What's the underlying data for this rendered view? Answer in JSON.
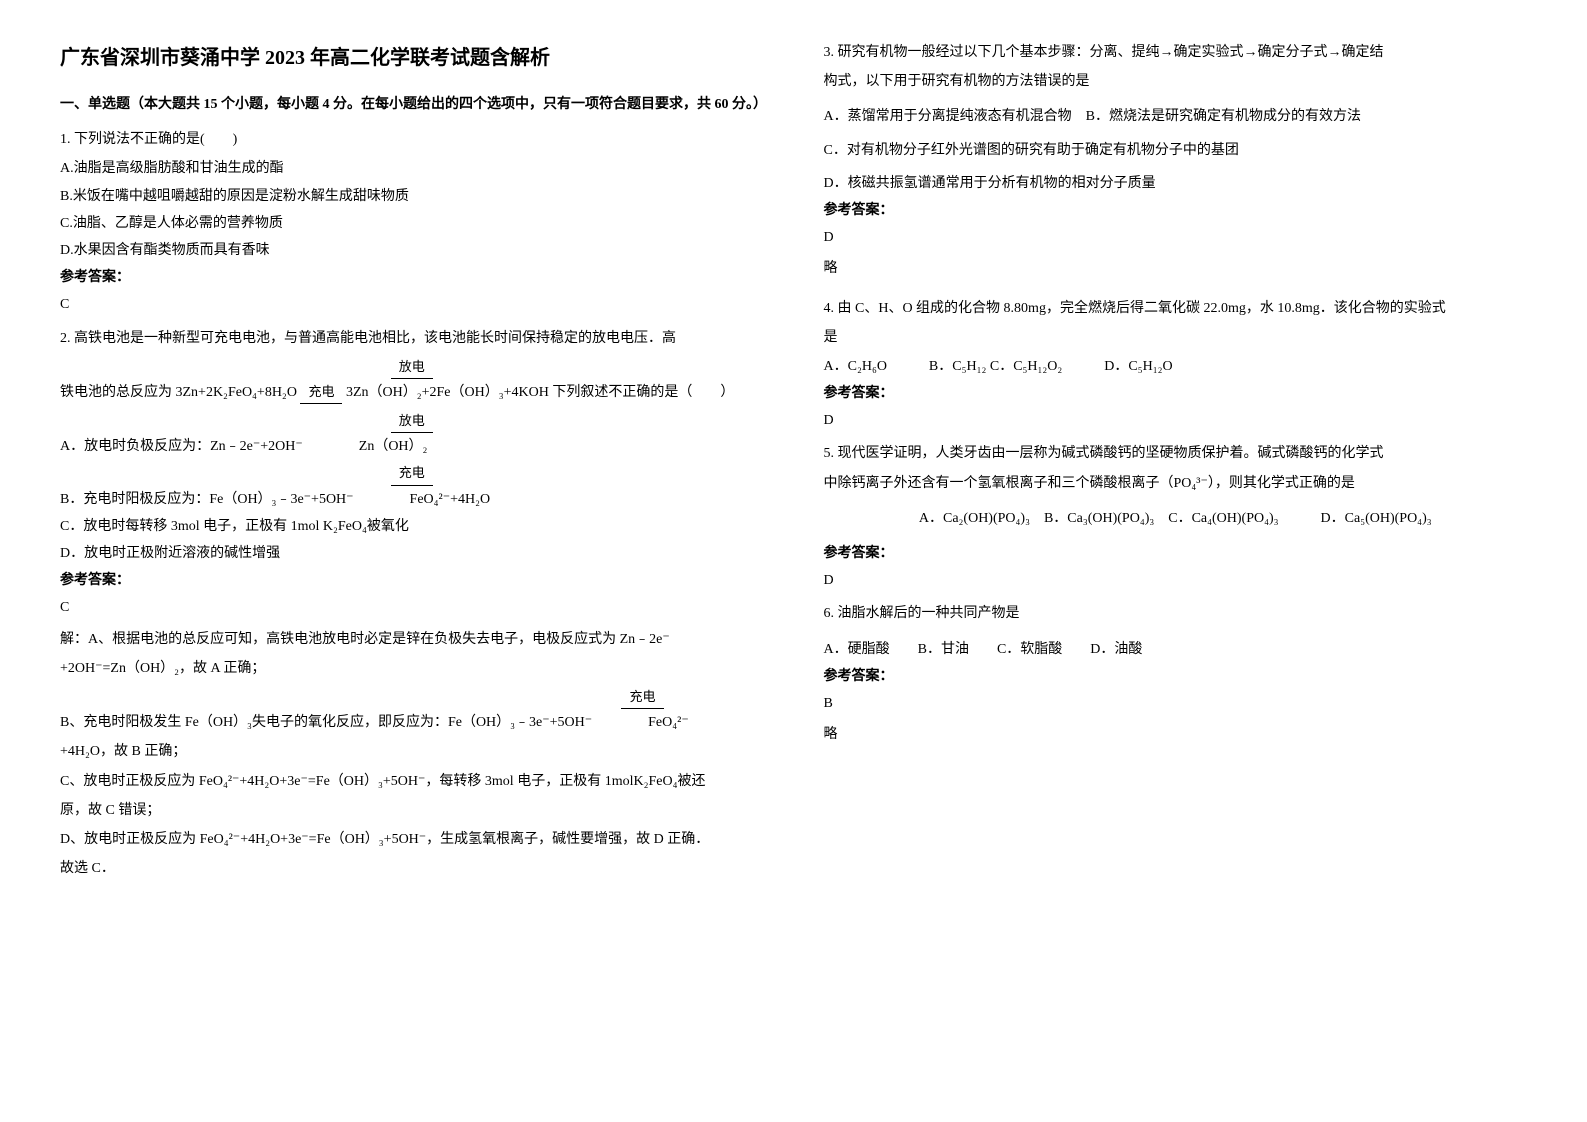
{
  "title": "广东省深圳市葵涌中学 2023 年高二化学联考试题含解析",
  "section1_heading": "一、单选题（本大题共 15 个小题，每小题 4 分。在每小题给出的四个选项中，只有一项符合题目要求，共 60 分。）",
  "q1": {
    "stem": "1. 下列说法不正确的是(　　)",
    "optA": "A.油脂是高级脂肪酸和甘油生成的酯",
    "optB": "B.米饭在嘴中越咀嚼越甜的原因是淀粉水解生成甜味物质",
    "optC": "C.油脂、乙醇是人体必需的营养物质",
    "optD": "D.水果因含有酯类物质而具有香味",
    "ans_label": "参考答案：",
    "ans": "C"
  },
  "q2": {
    "stem_a": "2. 高铁电池是一种新型可充电电池，与普通高能电池相比，该电池能长时间保持稳定的放电电压．高",
    "anno1": "放电",
    "stem_b1": "铁电池的总反应为 3Zn+2K₂FeO₄+8H₂O ",
    "anno1b": "充电",
    "stem_b2": " 3Zn（OH）₂+2Fe（OH）₃+4KOH 下列叙述不正确的是（　　）",
    "anno2": "放电",
    "optA": "A．放电时负极反应为：Zn﹣2e⁻+2OH⁻　　　　Zn（OH）₂",
    "anno3": "充电",
    "optB": "B．充电时阳极反应为：Fe（OH）₃﹣3e⁻+5OH⁻　　　　FeO₄²⁻+4H₂O",
    "optC": "C．放电时每转移 3mol 电子，正极有 1mol K₂FeO₄被氧化",
    "optD": "D．放电时正极附近溶液的碱性增强",
    "ans_label": "参考答案：",
    "ans": "C",
    "exp1": "解：A、根据电池的总反应可知，高铁电池放电时必定是锌在负极失去电子，电极反应式为 Zn﹣2e⁻",
    "exp2": "+2OH⁻=Zn（OH）₂，故 A 正确；",
    "anno4": "充电",
    "exp3a": "B、充电时阳极发生 Fe（OH）₃失电子的氧化反应，即反应为：Fe（OH）₃﹣3e⁻+5OH⁻　　　　FeO₄²⁻",
    "exp3b": "+4H₂O，故 B 正确；",
    "exp4": "C、放电时正极反应为 FeO₄²⁻+4H₂O+3e⁻=Fe（OH）₃+5OH⁻，每转移 3mol 电子，正极有 1molK₂FeO₄被还",
    "exp5": "原，故 C 错误；",
    "exp6": "D、放电时正极反应为 FeO₄²⁻+4H₂O+3e⁻=Fe（OH）₃+5OH⁻，生成氢氧根离子，碱性要增强，故 D 正确．",
    "exp7": "故选 C．"
  },
  "q3": {
    "stem1": "3. 研究有机物一般经过以下几个基本步骤：分离、提纯→确定实验式→确定分子式→确定结",
    "stem2": "构式，以下用于研究有机物的方法错误的是",
    "optA": "A．蒸馏常用于分离提纯液态有机混合物　B．燃烧法是研究确定有机物成分的有效方法",
    "optC": "C．对有机物分子红外光谱图的研究有助于确定有机物分子中的基团",
    "optD": "D．核磁共振氢谱通常用于分析有机物的相对分子质量",
    "ans_label": "参考答案：",
    "ans": "D",
    "note": "略"
  },
  "q4": {
    "stem1": "4. 由 C、H、O 组成的化合物 8.80mg，完全燃烧后得二氧化碳 22.0mg，水 10.8mg．该化合物的实验式",
    "stem2": "是",
    "opts": "A．C₂H₆O　　　B．C₅H₁₂ C．C₅H₁₂O₂　　　D．C₅H₁₂O",
    "ans_label": "参考答案：",
    "ans": "D"
  },
  "q5": {
    "stem1": "5. 现代医学证明，人类牙齿由一层称为碱式磷酸钙的坚硬物质保护着。碱式磷酸钙的化学式",
    "stem2": "中除钙离子外还含有一个氢氧根离子和三个磷酸根离子（PO₄³⁻），则其化学式正确的是",
    "opts": "A．Ca₂(OH)(PO₄)₃　B．Ca₃(OH)(PO₄)₃　C．Ca₄(OH)(PO₄)₃　　　D．Ca₅(OH)(PO₄)₃",
    "ans_label": "参考答案：",
    "ans": "D"
  },
  "q6": {
    "stem": "6. 油脂水解后的一种共同产物是",
    "opts": "A．硬脂酸　　B．甘油　　C．软脂酸　　D．油酸",
    "ans_label": "参考答案：",
    "ans": "B",
    "note": "略"
  }
}
